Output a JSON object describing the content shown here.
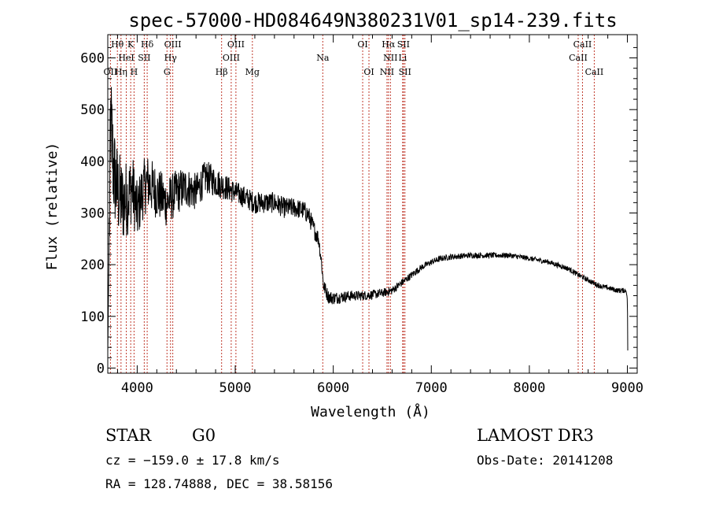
{
  "chart_data": {
    "type": "line",
    "title": "spec-57000-HD084649N380231V01_sp14-239.fits",
    "xlabel": "Wavelength (Å)",
    "ylabel": "Flux (relative)",
    "xlim": [
      3700,
      9100
    ],
    "ylim": [
      -10,
      645
    ],
    "x_ticks": [
      4000,
      5000,
      6000,
      7000,
      8000,
      9000
    ],
    "y_ticks": [
      0,
      100,
      200,
      300,
      400,
      500,
      600
    ],
    "x_tick_labels": [
      "4000",
      "5000",
      "6000",
      "7000",
      "8000",
      "9000"
    ],
    "y_tick_labels": [
      "0",
      "100",
      "200",
      "300",
      "400",
      "500",
      "600"
    ],
    "spectrum_anchors": {
      "wavelength": [
        3700,
        3730,
        3760,
        3800,
        3850,
        3900,
        3950,
        4000,
        4050,
        4100,
        4200,
        4300,
        4400,
        4500,
        4600,
        4700,
        4800,
        4900,
        5000,
        5100,
        5200,
        5300,
        5400,
        5500,
        5600,
        5700,
        5750,
        5800,
        5850,
        5880,
        5900,
        5950,
        6000,
        6100,
        6200,
        6300,
        6400,
        6500,
        6600,
        6700,
        6800,
        6900,
        7000,
        7100,
        7200,
        7400,
        7600,
        7800,
        8000,
        8200,
        8400,
        8500,
        8600,
        8700,
        8800,
        8900,
        8990,
        9000,
        9005
      ],
      "flux": [
        30,
        480,
        380,
        340,
        320,
        330,
        350,
        300,
        340,
        360,
        340,
        320,
        340,
        350,
        340,
        370,
        360,
        350,
        340,
        330,
        320,
        320,
        320,
        310,
        310,
        305,
        295,
        270,
        250,
        205,
        160,
        138,
        135,
        138,
        140,
        140,
        142,
        145,
        150,
        165,
        180,
        195,
        205,
        212,
        215,
        218,
        218,
        218,
        212,
        205,
        192,
        180,
        170,
        160,
        155,
        150,
        150,
        130,
        10
      ]
    },
    "noise_profile": {
      "wavelength": [
        3700,
        3800,
        4000,
        4500,
        5000,
        5500,
        5800,
        5900,
        6200,
        6600,
        7000,
        8000,
        9000
      ],
      "amplitude": [
        120,
        90,
        60,
        40,
        22,
        20,
        18,
        14,
        10,
        8,
        6,
        5,
        5
      ]
    },
    "spectral_lines": [
      {
        "label": "Hθ",
        "wavelength": 3798,
        "row": 1
      },
      {
        "label": "K",
        "wavelength": 3934,
        "row": 1
      },
      {
        "label": "Hδ",
        "wavelength": 4102,
        "row": 1
      },
      {
        "label": "OIII",
        "wavelength": 4363,
        "row": 1
      },
      {
        "label": "OIII",
        "wavelength": 5007,
        "row": 1
      },
      {
        "label": "OI",
        "wavelength": 6300,
        "row": 1
      },
      {
        "label": "Hα",
        "wavelength": 6563,
        "row": 1
      },
      {
        "label": "SII",
        "wavelength": 6716,
        "row": 1
      },
      {
        "label": "CaII",
        "wavelength": 8542,
        "row": 1
      },
      {
        "label": "HeI",
        "wavelength": 3889,
        "row": 2
      },
      {
        "label": "SII",
        "wavelength": 4072,
        "row": 2
      },
      {
        "label": "Hγ",
        "wavelength": 4340,
        "row": 2
      },
      {
        "label": "OIII",
        "wavelength": 4959,
        "row": 2
      },
      {
        "label": "Na",
        "wavelength": 5893,
        "row": 2
      },
      {
        "label": "NII",
        "wavelength": 6583,
        "row": 2
      },
      {
        "label": "Li",
        "wavelength": 6708,
        "row": 2
      },
      {
        "label": "CaII",
        "wavelength": 8498,
        "row": 2
      },
      {
        "label": "OII",
        "wavelength": 3727,
        "row": 3
      },
      {
        "label": "Hη",
        "wavelength": 3835,
        "row": 3
      },
      {
        "label": "H",
        "wavelength": 3968,
        "row": 3
      },
      {
        "label": "G",
        "wavelength": 4304,
        "row": 3
      },
      {
        "label": "Hβ",
        "wavelength": 4861,
        "row": 3
      },
      {
        "label": "Mg",
        "wavelength": 5175,
        "row": 3
      },
      {
        "label": "OI",
        "wavelength": 6364,
        "row": 3
      },
      {
        "label": "NII",
        "wavelength": 6548,
        "row": 3
      },
      {
        "label": "SII",
        "wavelength": 6731,
        "row": 3
      },
      {
        "label": "CaII",
        "wavelength": 8662,
        "row": 3
      }
    ],
    "colors": {
      "spectrum": "#000000",
      "line_markers": "#c0392b",
      "axes": "#000000"
    }
  },
  "footer": {
    "object_type": "STAR",
    "spectral_class": "G0",
    "survey": "LAMOST DR3",
    "redshift_text": "cz = −159.0 ± 17.8 km/s",
    "obs_date_text": "Obs-Date: 20141208",
    "coords_text": "RA = 128.74888, DEC =  38.58156"
  }
}
